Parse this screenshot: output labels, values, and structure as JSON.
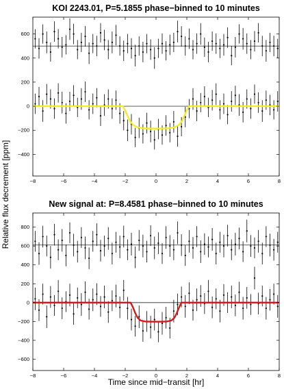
{
  "figure": {
    "ylabel": "Relative flux decrement [ppm]",
    "xlabel": "Time since mid−transit [hr]"
  },
  "chart_data": [
    {
      "type": "scatter",
      "title": "KOI 2243.01, P=5.1855 phase−binned to 10 minutes",
      "xlabel": "",
      "ylabel": "Relative flux decrement [ppm]",
      "xlim": [
        -8,
        8
      ],
      "ylim": [
        -580,
        740
      ],
      "xticks": [
        -8,
        -6,
        -4,
        -2,
        0,
        2,
        4,
        6,
        8
      ],
      "yticks": [
        -400,
        -200,
        0,
        200,
        400,
        600
      ],
      "grid": false,
      "reference_lines": [
        500,
        0
      ],
      "series": [
        {
          "role": "out-of-phase-offset",
          "color": "#000000",
          "x": [
            -7.85,
            -7.6,
            -7.35,
            -7.1,
            -6.85,
            -6.6,
            -6.35,
            -6.1,
            -5.85,
            -5.6,
            -5.35,
            -5.1,
            -4.85,
            -4.6,
            -4.35,
            -4.1,
            -3.85,
            -3.6,
            -3.35,
            -3.1,
            -2.85,
            -2.6,
            -2.35,
            -2.1,
            -1.85,
            -1.6,
            -1.35,
            -1.1,
            -0.85,
            -0.6,
            -0.35,
            -0.1,
            0.15,
            0.4,
            0.65,
            0.9,
            1.15,
            1.4,
            1.65,
            1.9,
            2.15,
            2.4,
            2.65,
            2.9,
            3.15,
            3.4,
            3.65,
            3.9,
            4.15,
            4.4,
            4.65,
            4.9,
            5.15,
            5.4,
            5.65,
            5.9,
            6.15,
            6.4,
            6.65,
            6.9,
            7.15,
            7.4,
            7.65,
            7.9
          ],
          "y": [
            560,
            480,
            600,
            530,
            450,
            620,
            560,
            490,
            510,
            640,
            600,
            470,
            530,
            580,
            440,
            520,
            500,
            610,
            550,
            470,
            530,
            590,
            500,
            460,
            520,
            480,
            420,
            500,
            450,
            520,
            470,
            400,
            480,
            520,
            460,
            510,
            530,
            620,
            580,
            500,
            560,
            470,
            520,
            600,
            490,
            450,
            540,
            520,
            480,
            510,
            570,
            420,
            490,
            600,
            560,
            520,
            470,
            540,
            610,
            500,
            460,
            530,
            500,
            480
          ],
          "err": [
            80,
            85,
            80,
            90,
            80,
            85,
            80,
            85,
            80,
            90,
            85,
            80,
            80,
            85,
            90,
            80,
            85,
            80,
            85,
            80,
            90,
            85,
            80,
            85,
            80,
            85,
            90,
            80,
            85,
            80,
            85,
            90,
            80,
            85,
            80,
            85,
            80,
            90,
            85,
            80,
            85,
            80,
            85,
            90,
            80,
            85,
            80,
            85,
            80,
            90,
            85,
            80,
            85,
            80,
            90,
            85,
            80,
            85,
            80,
            85,
            90,
            80,
            85,
            80
          ]
        },
        {
          "role": "in-phase",
          "color": "#000000",
          "x": [
            -7.85,
            -7.6,
            -7.35,
            -7.1,
            -6.85,
            -6.6,
            -6.35,
            -6.1,
            -5.85,
            -5.6,
            -5.35,
            -5.1,
            -4.85,
            -4.6,
            -4.35,
            -4.1,
            -3.85,
            -3.6,
            -3.35,
            -3.1,
            -2.85,
            -2.6,
            -2.35,
            -2.1,
            -1.85,
            -1.6,
            -1.35,
            -1.1,
            -0.85,
            -0.6,
            -0.35,
            -0.1,
            0.15,
            0.4,
            0.65,
            0.9,
            1.15,
            1.4,
            1.65,
            1.9,
            2.15,
            2.4,
            2.65,
            2.9,
            3.15,
            3.4,
            3.65,
            3.9,
            4.15,
            4.4,
            4.65,
            4.9,
            5.15,
            5.4,
            5.65,
            5.9,
            6.15,
            6.4,
            6.65,
            6.9,
            7.15,
            7.4,
            7.65,
            7.9
          ],
          "y": [
            20,
            80,
            -40,
            100,
            60,
            -20,
            110,
            30,
            -60,
            40,
            90,
            -10,
            60,
            120,
            -30,
            20,
            70,
            -80,
            10,
            60,
            -20,
            50,
            -60,
            -120,
            -200,
            -150,
            -260,
            -180,
            -230,
            -140,
            -210,
            -280,
            -190,
            -240,
            -160,
            -220,
            -130,
            -250,
            -170,
            -90,
            -20,
            60,
            -40,
            30,
            80,
            -10,
            50,
            100,
            -30,
            20,
            -70,
            40,
            90,
            10,
            -50,
            60,
            -20,
            100,
            30,
            -40,
            50,
            10,
            -30,
            40
          ],
          "err": [
            85,
            80,
            90,
            85,
            80,
            85,
            80,
            90,
            85,
            80,
            85,
            80,
            90,
            85,
            80,
            85,
            80,
            85,
            90,
            80,
            85,
            80,
            85,
            80,
            90,
            85,
            80,
            85,
            80,
            85,
            90,
            80,
            85,
            80,
            85,
            80,
            90,
            85,
            80,
            85,
            80,
            90,
            85,
            80,
            85,
            80,
            85,
            90,
            80,
            85,
            80,
            85,
            80,
            90,
            85,
            80,
            85,
            80,
            85,
            90,
            80,
            85,
            80,
            85
          ]
        },
        {
          "role": "transit-model",
          "color": "#f2ec2a",
          "x": [
            -8,
            -2.15,
            -2.0,
            -1.85,
            -1.7,
            -1.5,
            -1.2,
            -0.8,
            0,
            0.8,
            1.2,
            1.5,
            1.7,
            1.85,
            2.0,
            2.15,
            8
          ],
          "y": [
            0,
            0,
            -35,
            -80,
            -120,
            -155,
            -175,
            -184,
            -186,
            -184,
            -175,
            -155,
            -120,
            -80,
            -35,
            0,
            0
          ]
        }
      ]
    },
    {
      "type": "scatter",
      "title": "New signal at: P=8.4581 phase−binned to 10 minutes",
      "xlabel": "Time since mid−transit [hr]",
      "ylabel": "Relative flux decrement [ppm]",
      "xlim": [
        -8,
        8
      ],
      "ylim": [
        -720,
        950
      ],
      "xticks": [
        -8,
        -6,
        -4,
        -2,
        0,
        2,
        4,
        6,
        8
      ],
      "yticks": [
        -600,
        -400,
        -200,
        0,
        200,
        400,
        600,
        800
      ],
      "grid": false,
      "reference_lines": [
        610,
        0
      ],
      "series": [
        {
          "role": "out-of-phase-offset",
          "color": "#000000",
          "x": [
            -7.85,
            -7.6,
            -7.35,
            -7.1,
            -6.85,
            -6.6,
            -6.35,
            -6.1,
            -5.85,
            -5.6,
            -5.35,
            -5.1,
            -4.85,
            -4.6,
            -4.35,
            -4.1,
            -3.85,
            -3.6,
            -3.35,
            -3.1,
            -2.85,
            -2.6,
            -2.35,
            -2.1,
            -1.85,
            -1.6,
            -1.35,
            -1.1,
            -0.85,
            -0.6,
            -0.35,
            -0.1,
            0.15,
            0.4,
            0.65,
            0.9,
            1.15,
            1.4,
            1.65,
            1.9,
            2.15,
            2.4,
            2.65,
            2.9,
            3.15,
            3.4,
            3.65,
            3.9,
            4.15,
            4.4,
            4.65,
            4.9,
            5.15,
            5.4,
            5.65,
            5.9,
            6.15,
            6.4,
            6.65,
            6.9,
            7.15,
            7.4,
            7.65,
            7.9
          ],
          "y": [
            650,
            520,
            700,
            600,
            480,
            720,
            560,
            660,
            500,
            740,
            610,
            540,
            690,
            580,
            470,
            650,
            720,
            550,
            600,
            680,
            520,
            640,
            590,
            700,
            560,
            620,
            480,
            660,
            600,
            540,
            710,
            580,
            630,
            520,
            690,
            600,
            560,
            740,
            610,
            500,
            650,
            580,
            700,
            540,
            620,
            590,
            670,
            520,
            640,
            600,
            710,
            560,
            620,
            680,
            540,
            760,
            600,
            580,
            650,
            520,
            700,
            610,
            560,
            640
          ],
          "err": [
            110,
            120,
            115,
            110,
            120,
            115,
            110,
            120,
            115,
            110,
            120,
            115,
            110,
            120,
            115,
            110,
            120,
            115,
            110,
            120,
            115,
            110,
            120,
            115,
            110,
            120,
            115,
            110,
            120,
            115,
            110,
            120,
            115,
            110,
            120,
            115,
            110,
            120,
            115,
            110,
            120,
            115,
            110,
            120,
            115,
            110,
            120,
            115,
            110,
            120,
            115,
            110,
            120,
            115,
            110,
            120,
            115,
            110,
            120,
            115,
            110,
            120,
            115,
            110
          ]
        },
        {
          "role": "in-phase",
          "color": "#000000",
          "x": [
            -7.85,
            -7.6,
            -7.35,
            -7.1,
            -6.85,
            -6.6,
            -6.35,
            -6.1,
            -5.85,
            -5.6,
            -5.35,
            -5.1,
            -4.85,
            -4.6,
            -4.35,
            -4.1,
            -3.85,
            -3.6,
            -3.35,
            -3.1,
            -2.85,
            -2.6,
            -2.35,
            -2.1,
            -1.85,
            -1.6,
            -1.35,
            -1.1,
            -0.85,
            -0.6,
            -0.35,
            -0.1,
            0.15,
            0.4,
            0.65,
            0.9,
            1.15,
            1.4,
            1.65,
            1.9,
            2.15,
            2.4,
            2.65,
            2.9,
            3.15,
            3.4,
            3.65,
            3.9,
            4.15,
            4.4,
            4.65,
            4.9,
            5.15,
            5.4,
            5.65,
            5.9,
            6.15,
            6.4,
            6.65,
            6.9,
            7.15,
            7.4,
            7.65,
            7.9
          ],
          "y": [
            40,
            -80,
            90,
            -150,
            60,
            -30,
            120,
            -60,
            10,
            80,
            -120,
            50,
            -20,
            110,
            -70,
            30,
            90,
            -40,
            60,
            -100,
            20,
            70,
            -50,
            130,
            -60,
            -180,
            -250,
            -150,
            -300,
            -200,
            -260,
            -180,
            -310,
            -220,
            -160,
            -270,
            -90,
            -20,
            60,
            -40,
            100,
            -80,
            30,
            70,
            -10,
            120,
            -50,
            40,
            -90,
            80,
            0,
            60,
            -30,
            110,
            -60,
            50,
            -20,
            260,
            -10,
            70,
            -60,
            30,
            90,
            -40
          ],
          "err": [
            120,
            115,
            110,
            120,
            115,
            110,
            120,
            115,
            110,
            120,
            115,
            110,
            120,
            115,
            110,
            120,
            115,
            110,
            120,
            115,
            110,
            120,
            115,
            110,
            120,
            115,
            110,
            120,
            115,
            110,
            120,
            115,
            110,
            120,
            115,
            110,
            120,
            115,
            110,
            120,
            115,
            110,
            120,
            115,
            110,
            120,
            115,
            110,
            120,
            115,
            110,
            120,
            115,
            110,
            120,
            115,
            110,
            120,
            115,
            110,
            120,
            115,
            110,
            120
          ]
        },
        {
          "role": "transit-model",
          "color": "#d11a1a",
          "x": [
            -8,
            -1.65,
            -1.5,
            -1.35,
            -1.2,
            -1.0,
            -0.7,
            -0.3,
            0,
            0.3,
            0.7,
            1.0,
            1.2,
            1.35,
            1.5,
            1.65,
            8
          ],
          "y": [
            0,
            0,
            -50,
            -110,
            -160,
            -190,
            -200,
            -202,
            -202,
            -202,
            -200,
            -190,
            -160,
            -110,
            -50,
            0,
            0
          ]
        }
      ]
    }
  ]
}
